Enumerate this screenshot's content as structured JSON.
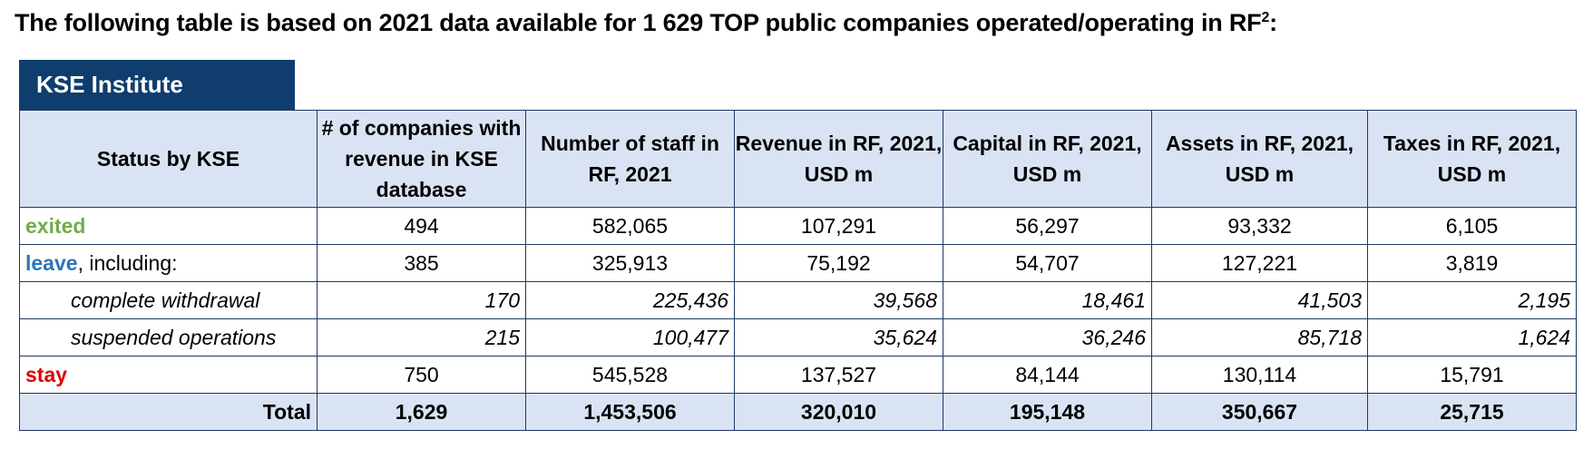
{
  "title": {
    "text": "The following table is based on 2021 data available for 1 629 TOP public companies operated/operating in RF",
    "footnote": "2",
    "suffix": ":"
  },
  "brand": "KSE Institute",
  "colors": {
    "brand_bg": "#0f3d6e",
    "header_bg": "#dae3f3",
    "exited": "#70ad47",
    "leave": "#2e75b6",
    "stay": "#e00000",
    "border": "#1f3864"
  },
  "table": {
    "headers": [
      "Status by KSE",
      "# of companies with revenue in KSE database",
      "Number of staff in RF, 2021",
      "Revenue in RF, 2021, USD m",
      "Capital in RF, 2021, USD m",
      "Assets in RF, 2021, USD m",
      "Taxes in RF, 2021, USD m"
    ],
    "rows": {
      "exited": {
        "status": "exited",
        "values": [
          "494",
          "582,065",
          "107,291",
          "56,297",
          "93,332",
          "6,105"
        ]
      },
      "leave": {
        "status": "leave",
        "status_suffix": ", including:",
        "values": [
          "385",
          "325,913",
          "75,192",
          "54,707",
          "127,221",
          "3,819"
        ]
      },
      "complete": {
        "status": "complete withdrawal",
        "values": [
          "170",
          "225,436",
          "39,568",
          "18,461",
          "41,503",
          "2,195"
        ]
      },
      "suspended": {
        "status": "suspended operations",
        "values": [
          "215",
          "100,477",
          "35,624",
          "36,246",
          "85,718",
          "1,624"
        ]
      },
      "stay": {
        "status": "stay",
        "values": [
          "750",
          "545,528",
          "137,527",
          "84,144",
          "130,114",
          "15,791"
        ]
      },
      "total": {
        "status": "Total",
        "values": [
          "1,629",
          "1,453,506",
          "320,010",
          "195,148",
          "350,667",
          "25,715"
        ]
      }
    }
  }
}
